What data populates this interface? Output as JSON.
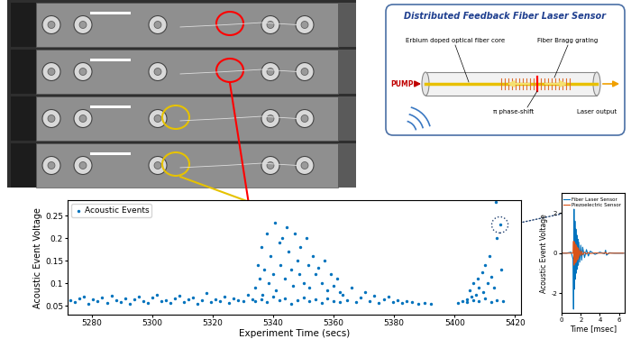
{
  "chart_data": [
    {
      "type": "scatter",
      "x_label": "Experiment Time (secs)",
      "y_label": "Acoustic Event Voltage",
      "xlim": [
        5272,
        5422
      ],
      "xticks": [
        5280,
        5300,
        5320,
        5340,
        5360,
        5380,
        5400,
        5420
      ],
      "ylim": [
        0.03,
        0.285
      ],
      "yticks": [
        0.05,
        0.1,
        0.15,
        0.2,
        0.25
      ],
      "grid": false,
      "legend": "upper left",
      "marker": "o",
      "series": [
        {
          "name": "Acoustic Events",
          "color": "#0072bd",
          "x": [
            5273,
            5274.5,
            5276,
            5277.5,
            5279,
            5280.5,
            5282,
            5283.5,
            5285,
            5286.5,
            5288,
            5289.5,
            5291,
            5292.5,
            5294,
            5295.5,
            5297,
            5298.5,
            5300,
            5301.5,
            5303,
            5304.5,
            5306,
            5307.5,
            5309,
            5310.5,
            5312,
            5313.5,
            5315,
            5316.5,
            5318,
            5319.5,
            5321,
            5322.5,
            5324,
            5325.5,
            5327,
            5328.5,
            5330,
            5331.5,
            5333,
            5334,
            5335,
            5335.5,
            5336,
            5336.5,
            5337,
            5338,
            5338.5,
            5339,
            5340,
            5340.5,
            5341,
            5342,
            5342.5,
            5343,
            5344,
            5344.5,
            5345,
            5346,
            5346.5,
            5347,
            5348,
            5348.5,
            5349,
            5350,
            5351,
            5351.5,
            5352,
            5353,
            5354,
            5355,
            5356,
            5357,
            5358,
            5359,
            5360,
            5361,
            5362,
            5334,
            5336,
            5338,
            5340,
            5342,
            5344,
            5346,
            5348,
            5350,
            5352,
            5354,
            5356,
            5358,
            5360,
            5362,
            5363,
            5364.5,
            5366,
            5367.5,
            5369,
            5370.5,
            5372,
            5373.5,
            5375,
            5376.5,
            5378,
            5379.5,
            5381,
            5382.5,
            5384,
            5386,
            5388,
            5390,
            5392,
            5401,
            5402.5,
            5404,
            5405,
            5405.5,
            5406,
            5407,
            5407.5,
            5408,
            5409,
            5409.5,
            5410,
            5411,
            5411.5,
            5412,
            5413,
            5413.5,
            5414,
            5415,
            5415.5,
            5404,
            5406,
            5408,
            5410,
            5412,
            5414,
            5416
          ],
          "values": [
            0.062,
            0.058,
            0.066,
            0.071,
            0.055,
            0.064,
            0.06,
            0.069,
            0.057,
            0.073,
            0.063,
            0.059,
            0.067,
            0.054,
            0.065,
            0.07,
            0.061,
            0.056,
            0.068,
            0.075,
            0.06,
            0.063,
            0.057,
            0.066,
            0.072,
            0.059,
            0.064,
            0.069,
            0.055,
            0.062,
            0.078,
            0.058,
            0.065,
            0.061,
            0.07,
            0.057,
            0.067,
            0.063,
            0.06,
            0.074,
            0.065,
            0.09,
            0.14,
            0.11,
            0.18,
            0.075,
            0.13,
            0.21,
            0.1,
            0.16,
            0.12,
            0.235,
            0.085,
            0.19,
            0.14,
            0.2,
            0.11,
            0.225,
            0.17,
            0.13,
            0.095,
            0.21,
            0.15,
            0.12,
            0.18,
            0.1,
            0.2,
            0.14,
            0.09,
            0.16,
            0.12,
            0.135,
            0.1,
            0.15,
            0.085,
            0.12,
            0.095,
            0.11,
            0.08,
            0.06,
            0.065,
            0.058,
            0.07,
            0.062,
            0.067,
            0.055,
            0.063,
            0.069,
            0.06,
            0.064,
            0.057,
            0.066,
            0.061,
            0.059,
            0.075,
            0.062,
            0.09,
            0.058,
            0.068,
            0.08,
            0.06,
            0.072,
            0.057,
            0.065,
            0.07,
            0.059,
            0.063,
            0.056,
            0.06,
            0.058,
            0.055,
            0.057,
            0.054,
            0.056,
            0.06,
            0.065,
            0.085,
            0.07,
            0.1,
            0.075,
            0.11,
            0.09,
            0.125,
            0.08,
            0.14,
            0.1,
            0.16,
            0.115,
            0.09,
            0.28,
            0.2,
            0.23,
            0.13,
            0.058,
            0.062,
            0.06,
            0.066,
            0.059,
            0.063,
            0.061
          ]
        }
      ]
    },
    {
      "type": "line",
      "x_label": "Time [msec]",
      "y_label": "Acoustic Event Voltage",
      "xlim": [
        0,
        6.6
      ],
      "xticks": [
        0,
        2,
        4,
        6
      ],
      "ylim": [
        -3,
        3
      ],
      "yticks": [
        -2,
        0,
        2
      ],
      "grid": false,
      "legend": "upper right",
      "x": [
        0,
        0.5,
        1.0,
        1.2,
        1.25,
        1.3,
        1.35,
        1.4,
        1.45,
        1.5,
        1.55,
        1.6,
        1.65,
        1.7,
        1.75,
        1.8,
        1.9,
        2.0,
        2.1,
        2.2,
        2.4,
        2.6,
        2.8,
        3.0,
        3.5,
        4.0,
        4.5,
        4.6,
        4.7,
        5.0,
        5.5,
        6.0,
        6.5
      ],
      "series": [
        {
          "name": "Fiber Laser Sensor",
          "color": "#0072bd",
          "values": [
            0,
            0,
            0.05,
            -0.3,
            -2.8,
            2.2,
            -1.8,
            1.6,
            -1.3,
            1.2,
            -1.0,
            0.9,
            -0.8,
            0.7,
            -0.6,
            0.55,
            -0.45,
            0.4,
            -0.35,
            0.3,
            -0.22,
            0.18,
            -0.14,
            0.1,
            -0.06,
            0.05,
            -0.03,
            0.15,
            -0.1,
            0.02,
            0,
            0,
            0
          ]
        },
        {
          "name": "Piezoelectric Sensor",
          "color": "#d95319",
          "values": [
            0,
            0,
            0,
            0,
            0.6,
            -0.6,
            0.55,
            -0.5,
            0.45,
            -0.45,
            0.4,
            -0.35,
            0.3,
            -0.3,
            0.25,
            -0.2,
            0.15,
            -0.12,
            0.1,
            -0.08,
            0.05,
            -0.04,
            0.03,
            -0.02,
            0.01,
            0,
            0,
            0.05,
            -0.03,
            0,
            0,
            0,
            0
          ]
        }
      ]
    }
  ],
  "diagram": {
    "title": "Distributed Feedback Fiber Laser Sensor",
    "labels": {
      "pump": "PUMP",
      "core": "Erbium doped optical fiber core",
      "grating": "Fiber Bragg grating",
      "phase": "π phase-shift",
      "output": "Laser output"
    }
  }
}
